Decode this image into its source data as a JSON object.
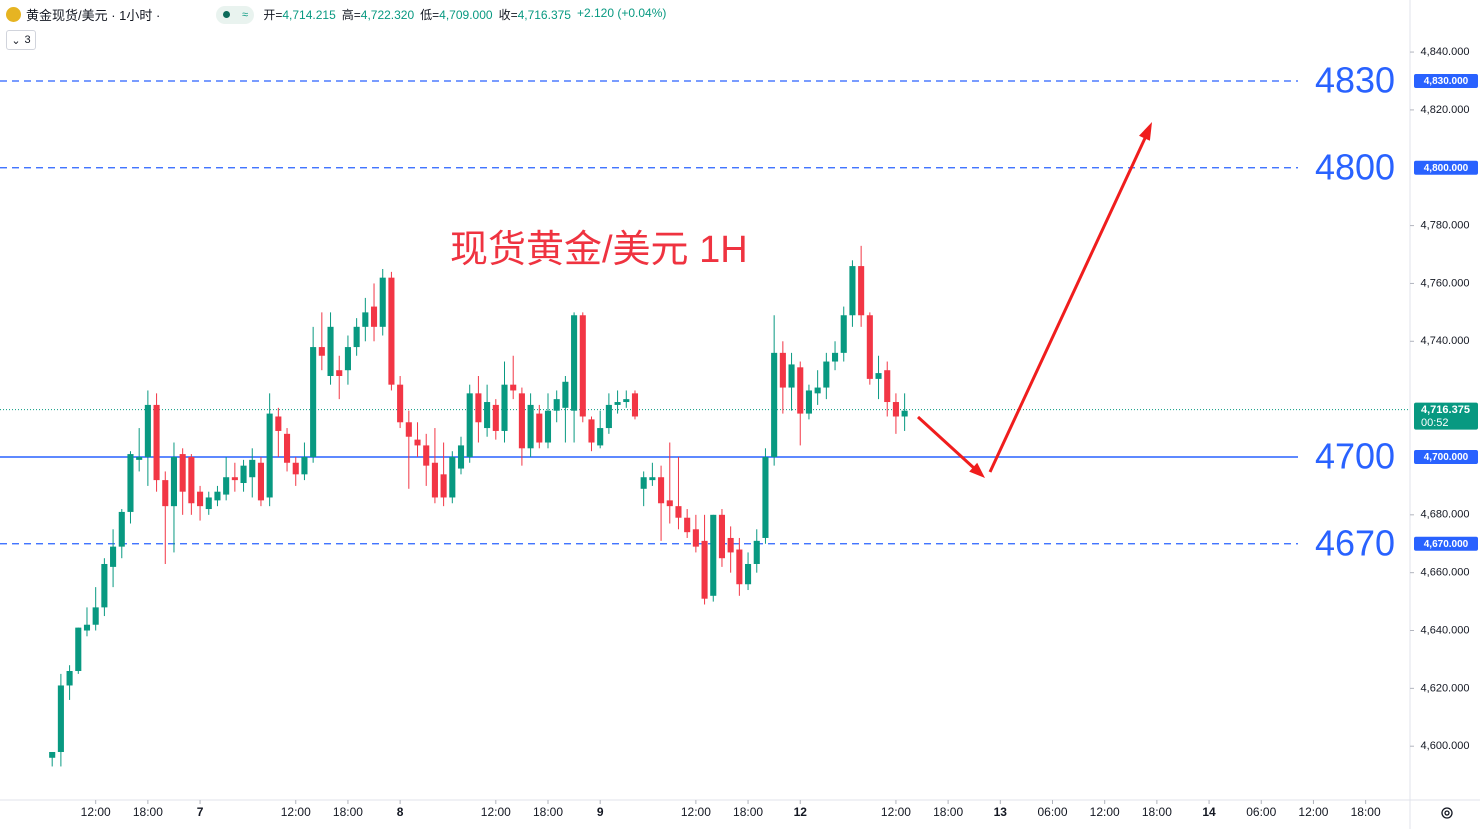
{
  "header": {
    "symbol": "黄金现货/美元 · 1小时 ·",
    "quote": [
      {
        "k": "开=",
        "v": "4,714.215"
      },
      {
        "k": "高=",
        "v": "4,722.320"
      },
      {
        "k": "低=",
        "v": "4,709.000"
      },
      {
        "k": "收=",
        "v": "4,716.375"
      }
    ],
    "change": "+2.120 (+0.04%)",
    "badge": "3"
  },
  "chart_data": {
    "type": "candlestick",
    "title": "现货黄金/美元 1H",
    "up_color": "#089981",
    "down_color": "#f23645",
    "open": [
      4596,
      4598,
      4621,
      4626,
      4640,
      4642,
      4648,
      4662,
      4669,
      4681,
      4699,
      4700,
      4718,
      4692,
      4683,
      4701,
      4700,
      4688,
      4682,
      4685,
      4687,
      4693,
      4691,
      4693,
      4698,
      4686,
      4714,
      4708,
      4698,
      4694,
      4700,
      4738,
      4728,
      4730,
      4730,
      4738,
      4745,
      4752,
      4745,
      4762,
      4725,
      4712,
      4706,
      4704,
      4698,
      4694,
      4686,
      4696,
      4700,
      4722,
      4710,
      4718,
      4709,
      4725,
      4722,
      4703,
      4715,
      4705,
      4716,
      4717,
      4716,
      4749,
      4713,
      4704,
      4710,
      4718,
      4719,
      4722,
      4689,
      4692,
      4693,
      4685,
      4683,
      4679,
      4675,
      4671,
      4652,
      4680,
      4672,
      4668,
      4656,
      4663,
      4672,
      4700,
      4736,
      4724,
      4731,
      4715,
      4722,
      4724,
      4733,
      4736,
      4749,
      4766,
      4749,
      4727,
      4730,
      4719,
      4714
    ],
    "high": [
      4598,
      4625,
      4628,
      4641,
      4648,
      4655,
      4665,
      4675,
      4682,
      4702,
      4710,
      4723,
      4722,
      4695,
      4705,
      4703,
      4701,
      4690,
      4688,
      4690,
      4700,
      4698,
      4699,
      4703,
      4700,
      4722,
      4717,
      4710,
      4700,
      4705,
      4745,
      4750,
      4750,
      4735,
      4742,
      4748,
      4755,
      4760,
      4765,
      4764,
      4728,
      4716,
      4712,
      4708,
      4710,
      4705,
      4702,
      4707,
      4725,
      4728,
      4725,
      4720,
      4733,
      4735,
      4724,
      4722,
      4718,
      4722,
      4723,
      4728,
      4750,
      4750,
      4714,
      4716,
      4722,
      4723,
      4723,
      4723,
      4695,
      4698,
      4697,
      4705,
      4700,
      4682,
      4680,
      4680,
      4680,
      4682,
      4676,
      4672,
      4667,
      4675,
      4703,
      4749,
      4740,
      4736,
      4733,
      4725,
      4730,
      4736,
      4740,
      4752,
      4768,
      4773,
      4750,
      4735,
      4733,
      4722,
      4722
    ],
    "low": [
      4593,
      4593,
      4616,
      4625,
      4638,
      4640,
      4645,
      4655,
      4665,
      4677,
      4695,
      4690,
      4688,
      4663,
      4667,
      4680,
      4680,
      4678,
      4680,
      4683,
      4685,
      4688,
      4688,
      4686,
      4683,
      4683,
      4700,
      4695,
      4690,
      4692,
      4698,
      4730,
      4725,
      4720,
      4725,
      4735,
      4740,
      4740,
      4742,
      4723,
      4710,
      4689,
      4700,
      4690,
      4684,
      4683,
      4684,
      4694,
      4698,
      4705,
      4707,
      4706,
      4705,
      4720,
      4697,
      4700,
      4703,
      4703,
      4712,
      4705,
      4705,
      4712,
      4702,
      4703,
      4708,
      4715,
      4717,
      4713,
      4683,
      4690,
      4671,
      4677,
      4675,
      4672,
      4667,
      4649,
      4650,
      4662,
      4660,
      4652,
      4654,
      4660,
      4670,
      4697,
      4715,
      4716,
      4704,
      4713,
      4718,
      4720,
      4730,
      4733,
      4745,
      4745,
      4725,
      4720,
      4714,
      4708,
      4709
    ],
    "close": [
      4598,
      4621,
      4626,
      4641,
      4642,
      4648,
      4663,
      4669,
      4681,
      4701,
      4700,
      4718,
      4692,
      4683,
      4700,
      4688,
      4684,
      4683,
      4686,
      4688,
      4693,
      4692,
      4697,
      4699,
      4685,
      4715,
      4709,
      4698,
      4694,
      4700,
      4738,
      4735,
      4745,
      4728,
      4738,
      4745,
      4750,
      4745,
      4762,
      4725,
      4712,
      4707,
      4704,
      4697,
      4686,
      4686,
      4700,
      4704,
      4722,
      4712,
      4719,
      4709,
      4725,
      4723,
      4703,
      4718,
      4705,
      4716,
      4720,
      4726,
      4749,
      4714,
      4705,
      4710,
      4718,
      4719,
      4720,
      4714,
      4693,
      4693,
      4684,
      4683,
      4679,
      4674,
      4669,
      4651,
      4680,
      4665,
      4667,
      4656,
      4663,
      4671,
      4700,
      4736,
      4724,
      4732,
      4715,
      4723,
      4724,
      4733,
      4736,
      4749,
      4766,
      4749,
      4727,
      4729,
      4719,
      4714,
      4716
    ],
    "xlim": [
      -6,
      156.1
    ],
    "ylim": [
      4581.4,
      4858
    ],
    "xticks": [
      {
        "value": 5,
        "label": "12:00"
      },
      {
        "value": 11,
        "label": "18:00"
      },
      {
        "value": 17,
        "label": "7"
      },
      {
        "value": 28,
        "label": "12:00"
      },
      {
        "value": 34,
        "label": "18:00"
      },
      {
        "value": 40,
        "label": "8"
      },
      {
        "value": 51,
        "label": "12:00"
      },
      {
        "value": 57,
        "label": "18:00"
      },
      {
        "value": 63,
        "label": "9"
      },
      {
        "value": 74,
        "label": "12:00"
      },
      {
        "value": 80,
        "label": "18:00"
      },
      {
        "value": 86,
        "label": "12"
      },
      {
        "value": 97,
        "label": "12:00"
      },
      {
        "value": 103,
        "label": "18:00"
      },
      {
        "value": 109,
        "label": "13"
      },
      {
        "value": 115,
        "label": "06:00"
      },
      {
        "value": 121,
        "label": "12:00"
      },
      {
        "value": 127,
        "label": "18:00"
      },
      {
        "value": 133,
        "label": "14"
      },
      {
        "value": 139,
        "label": "06:00"
      },
      {
        "value": 145,
        "label": "12:00"
      },
      {
        "value": 151,
        "label": "18:00"
      }
    ],
    "yticks": [
      {
        "value": 4840,
        "label": "4,840.000"
      },
      {
        "value": 4820,
        "label": "4,820.000"
      },
      {
        "value": 4780,
        "label": "4,780.000"
      },
      {
        "value": 4760,
        "label": "4,760.000"
      },
      {
        "value": 4740,
        "label": "4,740.000"
      },
      {
        "value": 4680,
        "label": "4,680.000"
      },
      {
        "value": 4660,
        "label": "4,660.000"
      },
      {
        "value": 4640,
        "label": "4,640.000"
      },
      {
        "value": 4620,
        "label": "4,620.000"
      },
      {
        "value": 4600,
        "label": "4,600.000"
      }
    ],
    "level_color": "#2962ff",
    "levels": [
      {
        "value": 4830,
        "label": "4,830.000",
        "style": "dashed"
      },
      {
        "value": 4800,
        "label": "4,800.000",
        "style": "dashed"
      },
      {
        "value": 4700,
        "label": "4,700.000",
        "style": "solid"
      },
      {
        "value": 4670,
        "label": "4,670.000",
        "style": "dashed"
      }
    ],
    "last_price": {
      "value": 4716.375,
      "label": "4,716.375",
      "countdown": "00:52"
    }
  }
}
